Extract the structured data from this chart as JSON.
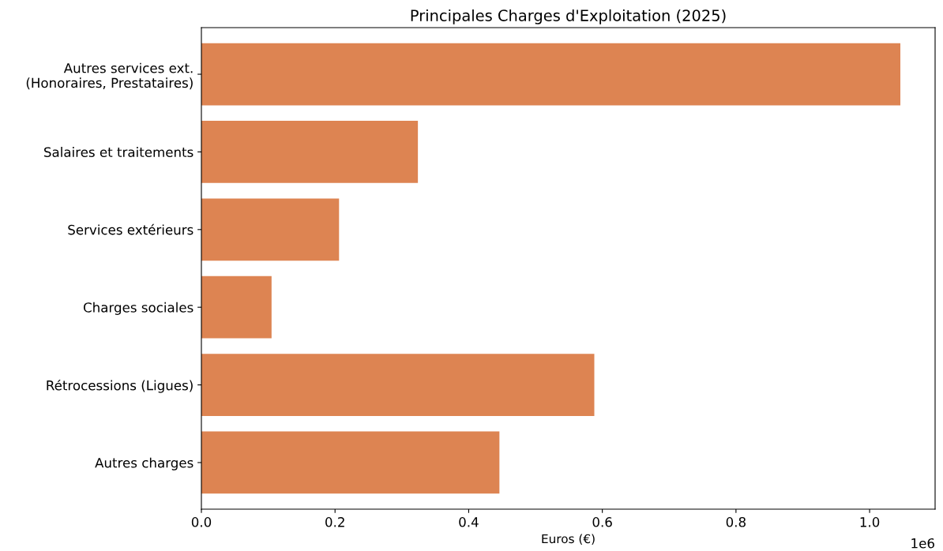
{
  "chart_data": {
    "type": "bar",
    "orientation": "horizontal",
    "title": "Principales Charges d'Exploitation (2025)",
    "xlabel": "Euros (€)",
    "categories": [
      "Autres services ext.\n(Honoraires, Prestataires)",
      "Salaires et traitements",
      "Services extérieurs",
      "Charges sociales",
      "Rétrocessions (Ligues)",
      "Autres charges"
    ],
    "values": [
      1.046,
      0.324,
      0.206,
      0.105,
      0.588,
      0.446
    ],
    "color": "#dd8452",
    "xlim": [
      0,
      1.098
    ],
    "xticks": [
      {
        "value": 0,
        "label": "0.0"
      },
      {
        "value": 0.2,
        "label": "0.2"
      },
      {
        "value": 0.4,
        "label": "0.4"
      },
      {
        "value": 0.6,
        "label": "0.6"
      },
      {
        "value": 0.8,
        "label": "0.8"
      },
      {
        "value": 1.0,
        "label": "1.0"
      }
    ],
    "annotations": [
      "1e6"
    ],
    "grid": false,
    "legend": false
  }
}
